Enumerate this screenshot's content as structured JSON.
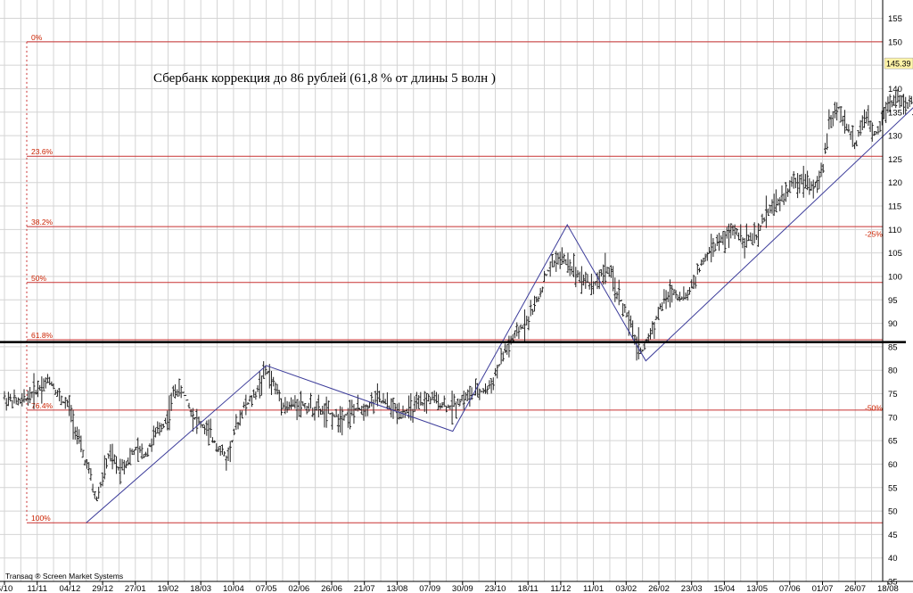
{
  "chart_data": {
    "type": "line",
    "title": "Сбербанк коррекция до 86 рублей (61,8 % от длины 5 волн )",
    "footer": "Transaq ® Screen Market Systems",
    "ylim": [
      35,
      157
    ],
    "y_ticks": [
      35,
      40,
      45,
      50,
      55,
      60,
      65,
      70,
      75,
      80,
      85,
      90,
      95,
      100,
      105,
      110,
      115,
      120,
      125,
      130,
      135,
      140,
      145,
      150,
      155
    ],
    "x_ticks": [
      "6/10",
      "11/11",
      "04/12",
      "29/12",
      "27/01",
      "19/02",
      "18/03",
      "10/04",
      "07/05",
      "02/06",
      "26/06",
      "21/07",
      "13/08",
      "07/09",
      "30/09",
      "23/10",
      "18/11",
      "11/12",
      "11/01",
      "03/02",
      "26/02",
      "23/03",
      "15/04",
      "13/05",
      "07/06",
      "01/07",
      "26/07",
      "18/08"
    ],
    "last_price": "145.39",
    "price_series": {
      "name": "",
      "points": [
        [
          0,
          74
        ],
        [
          0.5,
          73
        ],
        [
          1,
          76
        ],
        [
          1.4,
          78
        ],
        [
          1.7,
          74
        ],
        [
          2,
          72
        ],
        [
          2.3,
          64
        ],
        [
          2.6,
          58
        ],
        [
          2.8,
          52
        ],
        [
          3,
          57
        ],
        [
          3.2,
          62
        ],
        [
          3.5,
          59
        ],
        [
          3.8,
          61
        ],
        [
          4,
          63
        ],
        [
          4.3,
          62
        ],
        [
          4.6,
          66
        ],
        [
          5,
          70
        ],
        [
          5.2,
          76
        ],
        [
          5.5,
          75
        ],
        [
          5.8,
          70
        ],
        [
          6.2,
          67
        ],
        [
          6.5,
          64
        ],
        [
          6.8,
          61
        ],
        [
          7,
          66
        ],
        [
          7.3,
          72
        ],
        [
          7.6,
          74
        ],
        [
          8,
          80
        ],
        [
          8.3,
          76
        ],
        [
          8.6,
          72
        ],
        [
          9,
          73
        ],
        [
          9.4,
          72
        ],
        [
          9.8,
          71
        ],
        [
          10.2,
          70
        ],
        [
          10.6,
          71
        ],
        [
          11,
          72
        ],
        [
          11.4,
          74
        ],
        [
          11.8,
          72
        ],
        [
          12.2,
          71
        ],
        [
          12.6,
          72
        ],
        [
          13,
          74
        ],
        [
          13.3,
          73
        ],
        [
          13.6,
          72
        ],
        [
          14,
          74
        ],
        [
          14.4,
          75
        ],
        [
          14.8,
          76
        ],
        [
          15,
          79
        ],
        [
          15.3,
          84
        ],
        [
          15.6,
          87
        ],
        [
          16,
          91
        ],
        [
          16.3,
          95
        ],
        [
          16.6,
          101
        ],
        [
          16.9,
          104
        ],
        [
          17.2,
          103
        ],
        [
          17.6,
          100
        ],
        [
          18,
          98
        ],
        [
          18.4,
          102
        ],
        [
          18.7,
          97
        ],
        [
          19,
          92
        ],
        [
          19.3,
          86
        ],
        [
          19.5,
          84
        ],
        [
          19.8,
          89
        ],
        [
          20.1,
          94
        ],
        [
          20.4,
          97
        ],
        [
          20.8,
          95
        ],
        [
          21.2,
          101
        ],
        [
          21.6,
          106
        ],
        [
          22,
          108
        ],
        [
          22.3,
          110
        ],
        [
          22.6,
          108
        ],
        [
          23,
          108
        ],
        [
          23.3,
          114
        ],
        [
          23.7,
          116
        ],
        [
          24,
          119
        ],
        [
          24.4,
          121
        ],
        [
          24.8,
          119
        ],
        [
          25,
          122
        ],
        [
          25.2,
          133
        ],
        [
          25.5,
          136
        ],
        [
          25.8,
          131
        ],
        [
          26,
          128
        ],
        [
          26.3,
          134
        ],
        [
          26.6,
          130
        ],
        [
          27,
          137
        ],
        [
          27.3,
          138
        ],
        [
          27.6,
          136
        ],
        [
          28,
          139
        ],
        [
          28.3,
          140
        ],
        [
          28.6,
          138
        ],
        [
          28.9,
          137
        ],
        [
          29.2,
          136
        ],
        [
          29.5,
          142
        ],
        [
          29.8,
          138
        ],
        [
          30,
          144
        ]
      ]
    },
    "wave_lines": [
      {
        "points": [
          [
            2.5,
            47.5
          ],
          [
            8,
            81
          ],
          [
            13.7,
            67
          ],
          [
            17.2,
            111
          ],
          [
            19.6,
            82
          ],
          [
            29.9,
            150
          ]
        ]
      }
    ],
    "projection_line": {
      "points": [
        [
          29.9,
          150
        ],
        [
          31.4,
          86
        ]
      ]
    },
    "target_level": {
      "value": 86
    },
    "fib_levels": [
      {
        "label": "0%",
        "value": 150
      },
      {
        "label": "23.6%",
        "value": 125.6
      },
      {
        "label": "38.2%",
        "value": 110.6
      },
      {
        "label": "50%",
        "value": 98.7
      },
      {
        "label": "61.8%",
        "value": 86.5
      },
      {
        "label": "76.4%",
        "value": 71.5
      },
      {
        "label": "100%",
        "value": 47.5
      }
    ],
    "pct_labels": [
      {
        "label": "-25%",
        "value": 109
      },
      {
        "label": "-50%",
        "value": 72
      }
    ],
    "grid": true,
    "legend": "none"
  },
  "colors": {
    "grid": "#d4d4d4",
    "fib_line": "#c83232",
    "fib_label": "#cc2200",
    "wave_line": "#3c3c9a",
    "price_bar": "#222222",
    "target_line": "#000000",
    "price_tag_bg": "#fff4a8"
  }
}
